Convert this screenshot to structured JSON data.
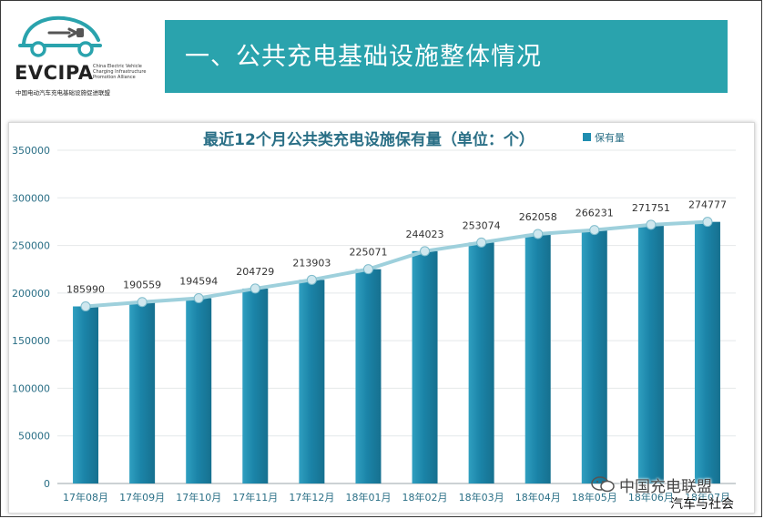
{
  "logo": {
    "name": "EVCIPA",
    "english_lines": [
      "China Electric Vehicle",
      "Charging Infrastructure",
      "Promotion Alliance"
    ],
    "chinese": "中国电动汽车充电基础设施促进联盟"
  },
  "banner": {
    "title": "一、公共充电基础设施整体情况"
  },
  "watermark": {
    "line1": "中国充电联盟",
    "line2": "汽车与社会"
  },
  "colors": {
    "banner": "#2aa3ad",
    "bar": "#1f8db0",
    "line": "#9ed0dc",
    "title": "#2a6f86",
    "axis_text": "#2a6f86"
  },
  "chart_data": {
    "type": "bar",
    "title": "最近12个月公共类充电设施保有量（单位：个）",
    "legend": [
      "保有量"
    ],
    "legend_position": "top-right",
    "categories": [
      "17年08月",
      "17年09月",
      "17年10月",
      "17年11月",
      "17年12月",
      "18年01月",
      "18年02月",
      "18年03月",
      "18年04月",
      "18年05月",
      "18年06月",
      "18年07月"
    ],
    "series": [
      {
        "name": "保有量",
        "values": [
          185990,
          190559,
          194594,
          204729,
          213903,
          225071,
          244023,
          253074,
          262058,
          266231,
          271751,
          274777
        ]
      }
    ],
    "data_labels": [
      "185990",
      "190559",
      "194594",
      "204729",
      "213903",
      "225071",
      "244023",
      "253074",
      "262058",
      "266231",
      "271751",
      "274777"
    ],
    "yticks": [
      "0",
      "50000",
      "100000",
      "150000",
      "200000",
      "250000",
      "300000",
      "350000"
    ],
    "ylim": [
      0,
      350000
    ],
    "overlay_line": true,
    "grid": true
  }
}
